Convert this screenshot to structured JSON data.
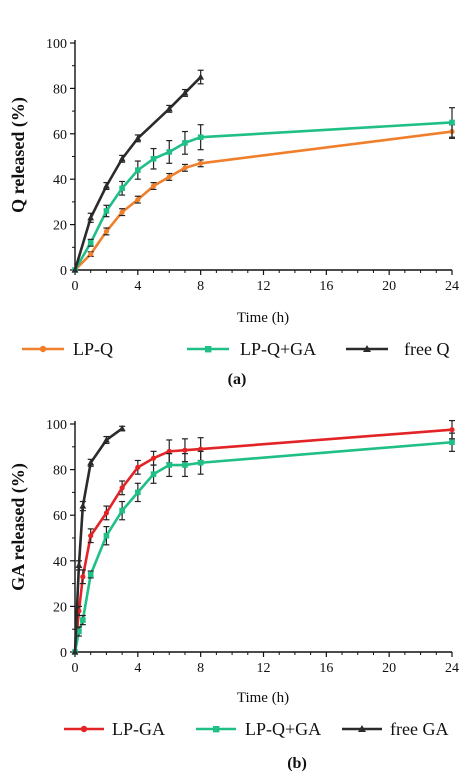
{
  "chart_data": [
    {
      "type": "line",
      "panel_label": "(a)",
      "xlabel": "Time (h)",
      "ylabel": "Q released (%)",
      "xlim": [
        0,
        24
      ],
      "ylim": [
        0,
        100
      ],
      "xticks": [
        0,
        4,
        8,
        12,
        16,
        20,
        24
      ],
      "yticks": [
        0,
        20,
        40,
        60,
        80,
        100
      ],
      "legend_position": "bottom",
      "series": [
        {
          "name": "LP-Q",
          "color": "#f07f2c",
          "marker": "circle",
          "x": [
            0,
            1,
            2,
            3,
            4,
            5,
            6,
            7,
            8,
            24
          ],
          "y": [
            0,
            7,
            17,
            25.5,
            31,
            37,
            41,
            45,
            47,
            61
          ],
          "err": [
            0,
            1,
            1.5,
            1.5,
            1.5,
            1.5,
            1.5,
            1.5,
            1.5,
            3
          ]
        },
        {
          "name": "LP-Q+GA",
          "color": "#1fbf86",
          "marker": "square",
          "x": [
            0,
            1,
            2,
            3,
            4,
            5,
            6,
            7,
            8,
            24
          ],
          "y": [
            0,
            12,
            26,
            36,
            44,
            49,
            52,
            56,
            58.5,
            65
          ],
          "err": [
            0,
            1.5,
            2.5,
            3,
            4,
            4.5,
            5,
            5,
            5.5,
            6.5
          ]
        },
        {
          "name": "free Q",
          "color": "#2b2b2b",
          "marker": "triangle",
          "x": [
            0,
            1,
            2,
            3,
            4,
            6,
            7,
            8
          ],
          "y": [
            0,
            23,
            37,
            49,
            58,
            71,
            78,
            85
          ],
          "err": [
            0,
            2,
            1.5,
            1.5,
            1.5,
            1.5,
            1.5,
            3
          ]
        }
      ]
    },
    {
      "type": "line",
      "panel_label": "(b)",
      "xlabel": "Time (h)",
      "ylabel": "GA released (%)",
      "xlim": [
        0,
        24
      ],
      "ylim": [
        0,
        100
      ],
      "xticks": [
        0,
        4,
        8,
        12,
        16,
        20,
        24
      ],
      "yticks": [
        0,
        20,
        40,
        60,
        80,
        100
      ],
      "legend_position": "bottom",
      "series": [
        {
          "name": "LP-GA",
          "color": "#e32427",
          "marker": "circle",
          "x": [
            0,
            0.25,
            0.5,
            1,
            2,
            3,
            4,
            5,
            6,
            7,
            8,
            24
          ],
          "y": [
            0,
            18,
            33,
            51,
            61,
            72,
            81,
            85,
            88,
            88.5,
            89,
            97.5
          ],
          "err": [
            0,
            2,
            3,
            3,
            3,
            3,
            3,
            3,
            5,
            5,
            5,
            4
          ]
        },
        {
          "name": "LP-Q+GA",
          "color": "#1fbf86",
          "marker": "square",
          "x": [
            0,
            0.25,
            0.5,
            1,
            2,
            3,
            4,
            5,
            6,
            7,
            8,
            24
          ],
          "y": [
            0,
            9,
            14,
            34,
            51,
            62,
            70,
            78,
            82,
            82,
            83,
            92
          ],
          "err": [
            0,
            2,
            2,
            1.5,
            4,
            4,
            4,
            4,
            5,
            5,
            5,
            4
          ]
        },
        {
          "name": "free GA",
          "color": "#2b2b2b",
          "marker": "triangle",
          "x": [
            0,
            0.25,
            0.5,
            1,
            2,
            3
          ],
          "y": [
            0,
            38,
            64,
            83,
            93,
            98
          ],
          "err": [
            0,
            2,
            2,
            1.5,
            1.5,
            1
          ]
        }
      ]
    }
  ]
}
